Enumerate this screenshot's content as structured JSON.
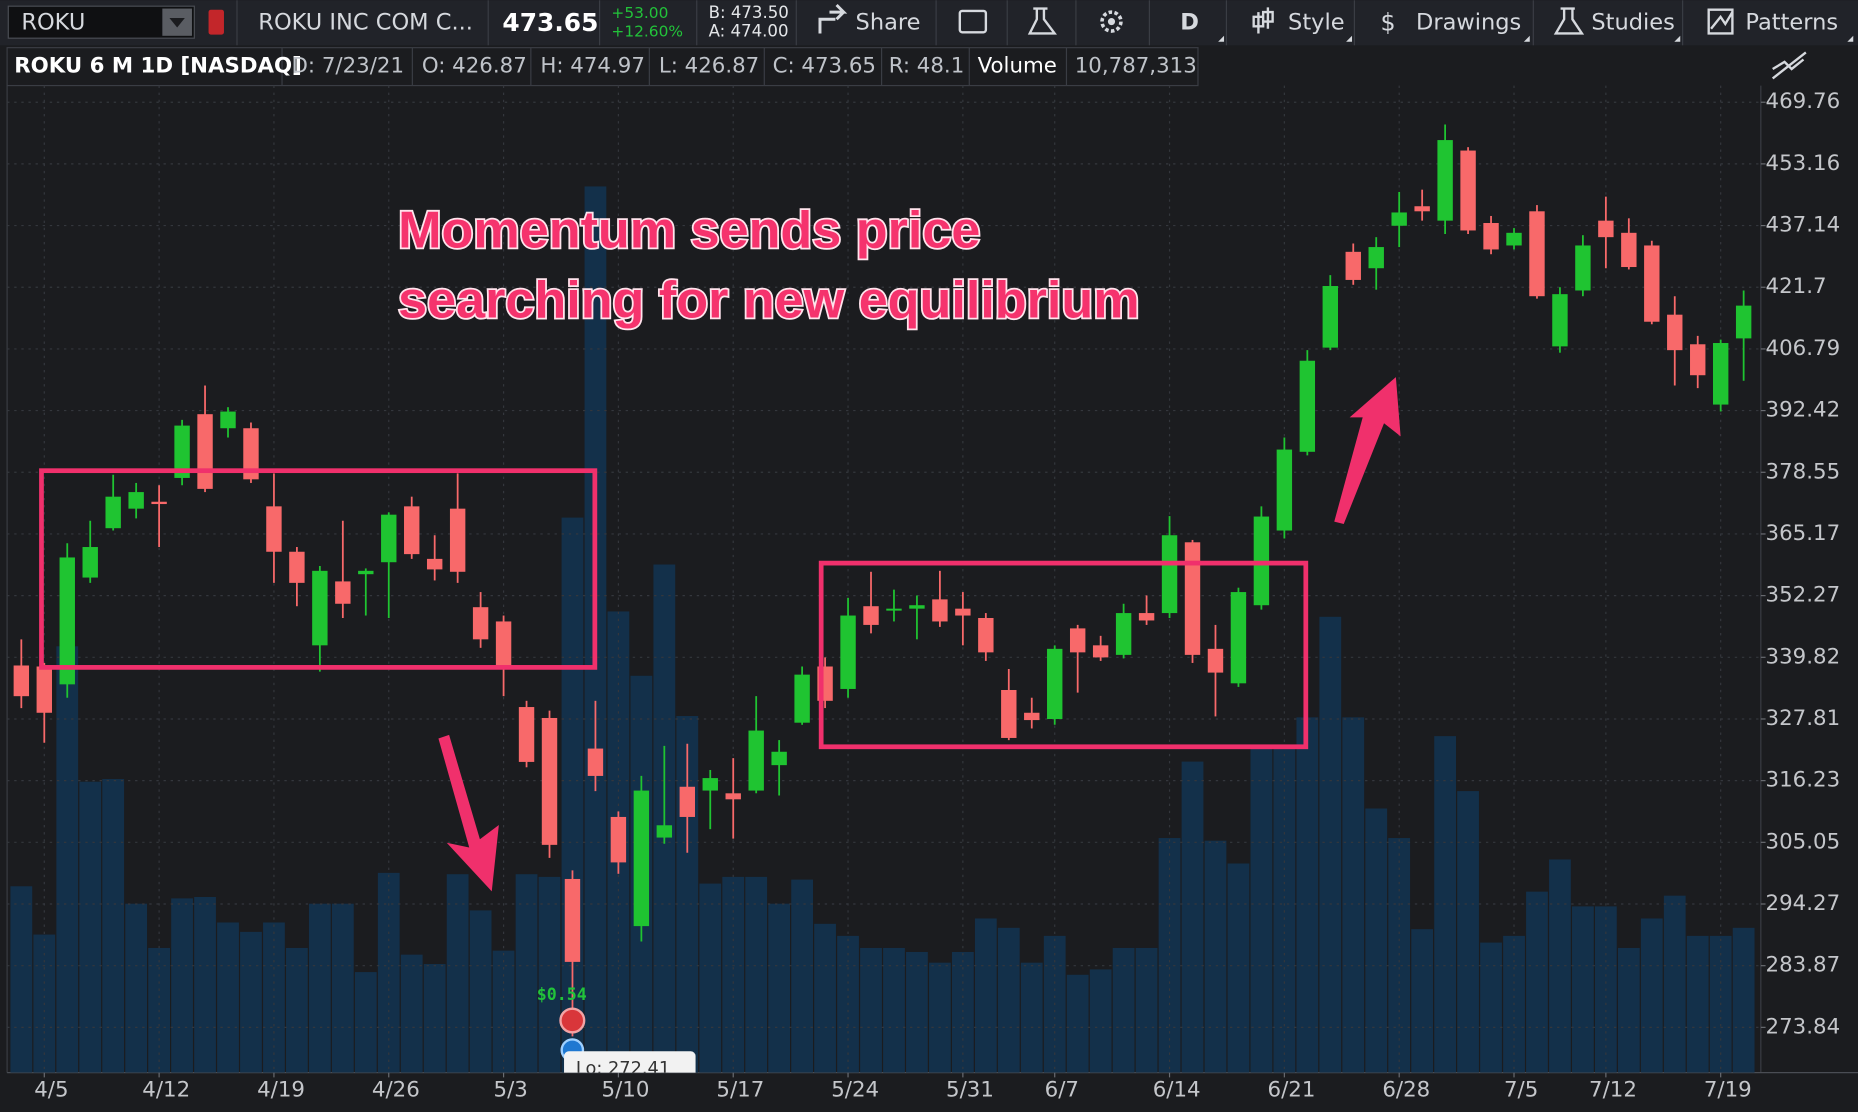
{
  "toolbar": {
    "symbol": "ROKU",
    "description": "ROKU INC COM C...",
    "last": "473.65",
    "change": "+53.00",
    "change_percent": "+12.60%",
    "bid": "B: 473.50",
    "ask": "A: 474.00",
    "buttons": [
      "Share",
      "D",
      "Style",
      "Drawings",
      "Studies",
      "Patterns"
    ]
  },
  "info_bar": {
    "title": "ROKU 6 M 1D [NASDAQ]",
    "items": [
      "D: 7/23/21",
      "O: 426.87",
      "H: 474.97",
      "L: 426.87",
      "C: 473.65",
      "R: 48.1"
    ],
    "volume_label": "Volume",
    "volume_value": "10,787,313"
  },
  "chart_data": {
    "type": "candlestick",
    "log_scale": true,
    "grid": true,
    "annotation_lines": [
      "Momentum sends price",
      "searching for new equilibrium"
    ],
    "event_label": "$0.54",
    "low_label": "Lo: 272.41",
    "up_color": "#1fc431",
    "down_color": "#f8696a",
    "volume_color": "#13304a",
    "annotation_color": "#f0306c",
    "ylim": [
      266.7,
      475.0
    ],
    "yticks": [
      469.76,
      453.16,
      437.14,
      421.7,
      406.79,
      392.42,
      378.55,
      365.17,
      352.27,
      339.82,
      327.81,
      316.23,
      305.05,
      294.27,
      283.87,
      273.84
    ],
    "volume_lim": [
      0,
      73800000
    ],
    "categories": [
      null,
      "4/5",
      null,
      null,
      null,
      null,
      "4/12",
      null,
      null,
      null,
      null,
      "4/19",
      null,
      null,
      null,
      null,
      "4/26",
      null,
      null,
      null,
      null,
      "5/3",
      null,
      null,
      null,
      null,
      "5/10",
      null,
      null,
      null,
      null,
      "5/17",
      null,
      null,
      null,
      null,
      "5/24",
      null,
      null,
      null,
      null,
      "5/31",
      null,
      null,
      null,
      "6/7",
      null,
      null,
      null,
      null,
      "6/14",
      null,
      null,
      null,
      null,
      "6/21",
      null,
      null,
      null,
      null,
      "6/28",
      null,
      null,
      null,
      null,
      "7/5",
      null,
      null,
      null,
      "7/12",
      null,
      null,
      null,
      null,
      "7/19",
      null
    ],
    "open": [
      338.2,
      338.0,
      334.5,
      356.0,
      366.4,
      370.6,
      372.1,
      377.3,
      391.6,
      388.4,
      388.4,
      371.1,
      361.4,
      342.2,
      355.2,
      356.7,
      359.2,
      371.1,
      359.9,
      370.6,
      349.9,
      347.0,
      330.1,
      328.0,
      298.6,
      322.2,
      309.6,
      290.5,
      305.9,
      315.1,
      314.4,
      313.9,
      314.4,
      319.1,
      327.1,
      338.0,
      333.6,
      350.1,
      349.2,
      349.6,
      351.5,
      349.6,
      347.7,
      333.4,
      329.0,
      327.8,
      345.6,
      342.2,
      340.3,
      348.7,
      348.7,
      363.4,
      341.5,
      334.7,
      350.3,
      365.9,
      383.1,
      407.1,
      430.5,
      426.4,
      437.1,
      442.1,
      438.4,
      456.7,
      437.8,
      432.1,
      440.8,
      407.4,
      420.9,
      438.4,
      435.3,
      432.1,
      415.0,
      407.9,
      393.8,
      409.3
    ],
    "high": [
      343.4,
      338.7,
      363.2,
      368.0,
      378.0,
      376.2,
      375.7,
      390.3,
      398.2,
      393.2,
      389.7,
      378.3,
      362.4,
      358.4,
      368.0,
      357.9,
      369.8,
      373.2,
      364.9,
      378.3,
      353.0,
      348.2,
      331.3,
      329.4,
      300.1,
      331.3,
      310.6,
      317.1,
      322.7,
      323.1,
      318.2,
      320.4,
      332.2,
      323.8,
      338.0,
      339.8,
      351.8,
      357.2,
      353.5,
      352.3,
      357.4,
      353.0,
      348.7,
      337.5,
      331.9,
      342.2,
      346.3,
      344.1,
      350.6,
      352.3,
      369.0,
      363.9,
      346.3,
      353.9,
      371.1,
      386.3,
      406.5,
      424.7,
      432.6,
      434.2,
      445.8,
      446.4,
      463.7,
      457.6,
      439.6,
      436.5,
      442.4,
      421.7,
      434.7,
      444.6,
      439.0,
      433.3,
      419.5,
      409.9,
      409.0,
      420.9
    ],
    "low": [
      329.9,
      323.3,
      331.9,
      354.9,
      365.9,
      368.5,
      362.4,
      375.7,
      374.2,
      386.3,
      376.2,
      354.9,
      350.1,
      337.0,
      347.7,
      348.2,
      347.7,
      359.9,
      355.4,
      354.9,
      341.7,
      332.2,
      318.7,
      302.3,
      272.41,
      314.3,
      299.5,
      287.9,
      304.8,
      303.2,
      307.4,
      305.7,
      313.9,
      313.5,
      326.7,
      329.9,
      331.9,
      344.6,
      347.0,
      343.4,
      345.9,
      342.2,
      339.1,
      323.8,
      326.0,
      326.7,
      332.9,
      339.1,
      339.6,
      346.3,
      347.7,
      338.7,
      328.3,
      334.0,
      349.4,
      364.2,
      382.3,
      406.5,
      422.3,
      421.1,
      431.7,
      438.4,
      435.0,
      435.0,
      429.9,
      431.1,
      418.9,
      405.9,
      419.5,
      426.4,
      426.1,
      412.7,
      398.2,
      397.6,
      392.2,
      399.3
    ],
    "close": [
      332.2,
      329.0,
      360.2,
      362.4,
      373.2,
      374.2,
      371.6,
      389.0,
      374.9,
      392.2,
      377.0,
      361.4,
      354.9,
      357.4,
      350.6,
      357.4,
      369.3,
      360.9,
      357.7,
      357.2,
      343.4,
      338.2,
      319.7,
      304.6,
      284.5,
      317.1,
      301.5,
      314.4,
      308.1,
      309.6,
      316.7,
      312.8,
      325.6,
      321.6,
      336.4,
      331.3,
      348.2,
      346.3,
      349.6,
      350.3,
      347.0,
      348.2,
      340.8,
      324.2,
      327.6,
      341.5,
      340.8,
      339.8,
      348.7,
      347.2,
      364.9,
      340.3,
      336.8,
      353.0,
      368.9,
      383.6,
      404.0,
      422.0,
      423.5,
      431.7,
      440.5,
      440.8,
      459.5,
      435.9,
      431.1,
      435.3,
      419.5,
      420.0,
      432.1,
      434.2,
      426.7,
      413.3,
      406.5,
      400.6,
      408.2,
      417.2
    ],
    "volume": [
      13900000,
      10300000,
      31800000,
      21700000,
      21900000,
      12600000,
      9300000,
      13000000,
      13100000,
      11200000,
      10500000,
      11200000,
      9300000,
      12600000,
      12600000,
      7500000,
      14900000,
      8800000,
      8100000,
      14800000,
      12100000,
      9100000,
      14800000,
      14600000,
      41400000,
      66100000,
      34400000,
      29600000,
      37900000,
      26600000,
      14100000,
      14600000,
      14600000,
      12600000,
      14400000,
      11100000,
      10200000,
      9300000,
      9300000,
      9000000,
      8200000,
      9000000,
      11500000,
      10800000,
      8200000,
      10200000,
      7300000,
      7700000,
      9300000,
      9300000,
      17500000,
      23200000,
      17300000,
      15600000,
      24300000,
      24300000,
      26500000,
      34000000,
      26500000,
      19700000,
      17500000,
      10700000,
      25100000,
      21000000,
      9700000,
      10200000,
      13500000,
      15900000,
      12400000,
      12400000,
      9300000,
      11500000,
      13200000,
      10200000,
      10200000,
      10800000
    ]
  }
}
